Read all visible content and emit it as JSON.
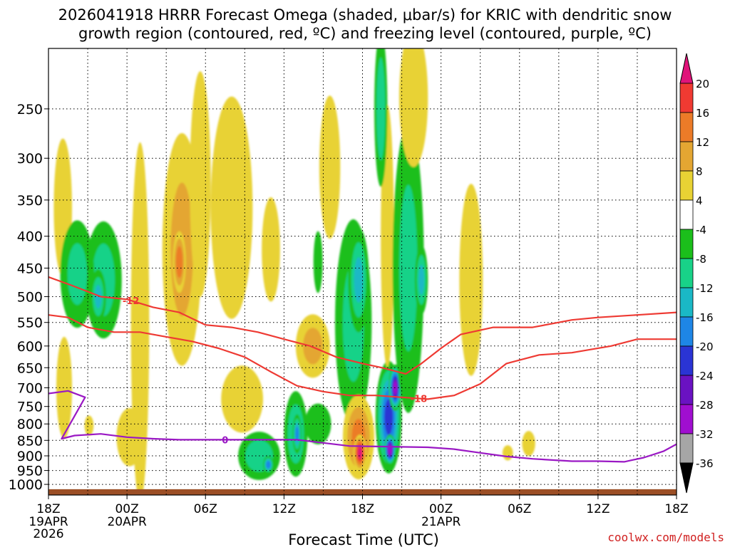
{
  "title_line1": "2026041918 HRRR Forecast Omega (shaded, μbar/s) for KRIC with dendritic snow",
  "title_line2": "growth region (contoured, red, ºC) and freezing level (contoured, purple, ºC)",
  "xlabel": "Forecast Time (UTC)",
  "watermark": "coolwx.com/models",
  "chart_data": {
    "type": "heatmap",
    "x_range_hours": [
      0,
      48
    ],
    "x_ticks": [
      {
        "h": 0,
        "label": "18Z",
        "sub1": "19APR",
        "sub2": "2026"
      },
      {
        "h": 6,
        "label": "00Z",
        "sub1": "20APR",
        "sub2": ""
      },
      {
        "h": 12,
        "label": "06Z",
        "sub1": "",
        "sub2": ""
      },
      {
        "h": 18,
        "label": "12Z",
        "sub1": "",
        "sub2": ""
      },
      {
        "h": 24,
        "label": "18Z",
        "sub1": "",
        "sub2": ""
      },
      {
        "h": 30,
        "label": "00Z",
        "sub1": "21APR",
        "sub2": ""
      },
      {
        "h": 36,
        "label": "06Z",
        "sub1": "",
        "sub2": ""
      },
      {
        "h": 42,
        "label": "12Z",
        "sub1": "",
        "sub2": ""
      },
      {
        "h": 48,
        "label": "18Z",
        "sub1": "",
        "sub2": ""
      }
    ],
    "y_range_hpa": [
      1040,
      200
    ],
    "y_ticks": [
      250,
      300,
      350,
      400,
      450,
      500,
      550,
      600,
      650,
      700,
      750,
      800,
      850,
      900,
      950,
      1000
    ],
    "colorbar": {
      "bins": [
        {
          "lo": 20,
          "hi": 24,
          "color": "#e0147a"
        },
        {
          "lo": 16,
          "hi": 20,
          "color": "#f03a32"
        },
        {
          "lo": 12,
          "hi": 16,
          "color": "#ec7b28"
        },
        {
          "lo": 8,
          "hi": 12,
          "color": "#e4a632"
        },
        {
          "lo": 4,
          "hi": 8,
          "color": "#e8d234"
        },
        {
          "lo": -4,
          "hi": 4,
          "color": "#ffffff"
        },
        {
          "lo": -8,
          "hi": -4,
          "color": "#1bbf1b"
        },
        {
          "lo": -12,
          "hi": -8,
          "color": "#18d288"
        },
        {
          "lo": -16,
          "hi": -12,
          "color": "#1ab8c6"
        },
        {
          "lo": -20,
          "hi": -16,
          "color": "#1e86e6"
        },
        {
          "lo": -24,
          "hi": -20,
          "color": "#2a34d4"
        },
        {
          "lo": -28,
          "hi": -24,
          "color": "#6a12c2"
        },
        {
          "lo": -32,
          "hi": -28,
          "color": "#a00ed0"
        },
        {
          "lo": -36,
          "hi": -32,
          "color": "#a6a6a6"
        },
        {
          "lo": -40,
          "hi": -36,
          "color": "#000000"
        }
      ],
      "labels": [
        "20",
        "16",
        "12",
        "8",
        "4",
        "-4",
        "-8",
        "-12",
        "-16",
        "-20",
        "-24",
        "-28",
        "-32",
        "-36"
      ]
    },
    "omega_features": [
      {
        "h": 1.1,
        "p": 360,
        "val": 6,
        "dh": 0.7,
        "dp": 90
      },
      {
        "h": 1.2,
        "p": 700,
        "val": 6,
        "dh": 0.6,
        "dp": 130
      },
      {
        "h": 3.1,
        "p": 805,
        "val": 6,
        "dh": 0.35,
        "dp": 30
      },
      {
        "h": 4.2,
        "p": 470,
        "val": -9,
        "dh": 1.4,
        "dp": 100
      },
      {
        "h": 2.2,
        "p": 460,
        "val": -8,
        "dh": 1.3,
        "dp": 90
      },
      {
        "h": 3.8,
        "p": 500,
        "val": -12,
        "dh": 0.6,
        "dp": 50
      },
      {
        "h": 6.2,
        "p": 840,
        "val": 6,
        "dh": 1.0,
        "dp": 90
      },
      {
        "h": 7.0,
        "p": 550,
        "val": 6,
        "dh": 0.7,
        "dp": 320
      },
      {
        "h": 10.2,
        "p": 420,
        "val": 8,
        "dh": 1.5,
        "dp": 170
      },
      {
        "h": 10.0,
        "p": 440,
        "val": 14,
        "dh": 0.5,
        "dp": 50
      },
      {
        "h": 11.6,
        "p": 330,
        "val": 5,
        "dh": 0.8,
        "dp": 130
      },
      {
        "h": 14.0,
        "p": 360,
        "val": 5,
        "dh": 1.6,
        "dp": 140
      },
      {
        "h": 14.8,
        "p": 730,
        "val": 6,
        "dh": 1.6,
        "dp": 90
      },
      {
        "h": 17.0,
        "p": 420,
        "val": 5,
        "dh": 0.7,
        "dp": 80
      },
      {
        "h": 20.2,
        "p": 600,
        "val": 8,
        "dh": 1.3,
        "dp": 70
      },
      {
        "h": 20.6,
        "p": 440,
        "val": -6,
        "dh": 0.35,
        "dp": 50
      },
      {
        "h": 21.5,
        "p": 310,
        "val": 5,
        "dh": 0.8,
        "dp": 80
      },
      {
        "h": 16.1,
        "p": 900,
        "val": -10,
        "dh": 1.6,
        "dp": 80
      },
      {
        "h": 16.8,
        "p": 930,
        "val": -18,
        "dh": 0.4,
        "dp": 30
      },
      {
        "h": 18.9,
        "p": 830,
        "val": -11,
        "dh": 0.9,
        "dp": 130
      },
      {
        "h": 19.0,
        "p": 830,
        "val": -16,
        "dh": 0.35,
        "dp": 60
      },
      {
        "h": 20.6,
        "p": 800,
        "val": -6,
        "dh": 1.0,
        "dp": 60
      },
      {
        "h": 23.3,
        "p": 550,
        "val": -8,
        "dh": 1.4,
        "dp": 200
      },
      {
        "h": 23.7,
        "p": 470,
        "val": -12,
        "dh": 0.8,
        "dp": 90
      },
      {
        "h": 23.7,
        "p": 840,
        "val": 12,
        "dh": 1.2,
        "dp": 130
      },
      {
        "h": 23.8,
        "p": 890,
        "val": 20,
        "dh": 0.5,
        "dp": 60
      },
      {
        "h": 26.0,
        "p": 780,
        "val": -20,
        "dh": 1.0,
        "dp": 160
      },
      {
        "h": 26.5,
        "p": 700,
        "val": -28,
        "dh": 0.5,
        "dp": 60
      },
      {
        "h": 26.1,
        "p": 880,
        "val": -30,
        "dh": 0.45,
        "dp": 50
      },
      {
        "h": 25.9,
        "p": 400,
        "val": 6,
        "dh": 0.5,
        "dp": 180
      },
      {
        "h": 25.4,
        "p": 250,
        "val": -10,
        "dh": 0.5,
        "dp": 70
      },
      {
        "h": 27.5,
        "p": 450,
        "val": -8,
        "dh": 1.2,
        "dp": 220
      },
      {
        "h": 28.5,
        "p": 470,
        "val": -12,
        "dh": 0.5,
        "dp": 60
      },
      {
        "h": 27.9,
        "p": 240,
        "val": 5,
        "dh": 1.1,
        "dp": 60
      },
      {
        "h": 32.3,
        "p": 470,
        "val": 5,
        "dh": 0.9,
        "dp": 160
      },
      {
        "h": 35.1,
        "p": 890,
        "val": 5,
        "dh": 0.4,
        "dp": 25
      },
      {
        "h": 36.7,
        "p": 860,
        "val": 5,
        "dh": 0.5,
        "dp": 40
      }
    ],
    "dgz_contours": [
      {
        "label": "-12",
        "label_at_h": 6.3,
        "points": [
          [
            0,
            465
          ],
          [
            1.8,
            480
          ],
          [
            4.0,
            500
          ],
          [
            6.0,
            505
          ],
          [
            8.0,
            520
          ],
          [
            10.0,
            530
          ],
          [
            12.0,
            555
          ],
          [
            14.0,
            560
          ],
          [
            16.0,
            570
          ],
          [
            18.0,
            585
          ],
          [
            20.0,
            600
          ],
          [
            22.0,
            625
          ],
          [
            24.0,
            640
          ],
          [
            25.5,
            650
          ],
          [
            27.3,
            665
          ],
          [
            28.5,
            640
          ],
          [
            30.0,
            605
          ],
          [
            31.5,
            575
          ],
          [
            34.0,
            560
          ],
          [
            37.0,
            560
          ],
          [
            40.0,
            545
          ],
          [
            42.0,
            540
          ],
          [
            45.0,
            535
          ],
          [
            48.0,
            530
          ]
        ]
      },
      {
        "label": "-18",
        "label_at_h": 28.3,
        "points": [
          [
            0,
            535
          ],
          [
            1.5,
            540
          ],
          [
            3.0,
            560
          ],
          [
            5.0,
            570
          ],
          [
            7.0,
            570
          ],
          [
            9.0,
            580
          ],
          [
            11.0,
            590
          ],
          [
            13.0,
            605
          ],
          [
            15.0,
            625
          ],
          [
            17.0,
            660
          ],
          [
            19.0,
            695
          ],
          [
            21.0,
            710
          ],
          [
            23.0,
            720
          ],
          [
            25.0,
            720
          ],
          [
            27.0,
            725
          ],
          [
            29.0,
            730
          ],
          [
            31.0,
            720
          ],
          [
            33.0,
            690
          ],
          [
            35.0,
            640
          ],
          [
            37.5,
            620
          ],
          [
            40.0,
            615
          ],
          [
            43.0,
            600
          ],
          [
            45.0,
            585
          ],
          [
            48.0,
            585
          ]
        ]
      }
    ],
    "freezing_level": {
      "label": "0",
      "label_at_h": 13.5,
      "points": [
        [
          0,
          715
        ],
        [
          1.5,
          708
        ],
        [
          2.8,
          725
        ],
        [
          1.8,
          790
        ],
        [
          1.0,
          845
        ],
        [
          2.0,
          835
        ],
        [
          4.0,
          830
        ],
        [
          6.0,
          840
        ],
        [
          8.0,
          845
        ],
        [
          10.0,
          848
        ],
        [
          13.0,
          848
        ],
        [
          17.0,
          848
        ],
        [
          19.0,
          848
        ],
        [
          21.0,
          858
        ],
        [
          23.0,
          868
        ],
        [
          26.0,
          870
        ],
        [
          29.0,
          872
        ],
        [
          31.0,
          878
        ],
        [
          33.0,
          890
        ],
        [
          35.0,
          902
        ],
        [
          37.0,
          910
        ],
        [
          40.0,
          918
        ],
        [
          42.0,
          918
        ],
        [
          44.0,
          920
        ],
        [
          45.5,
          906
        ],
        [
          47.0,
          885
        ],
        [
          48.0,
          862
        ]
      ]
    }
  }
}
